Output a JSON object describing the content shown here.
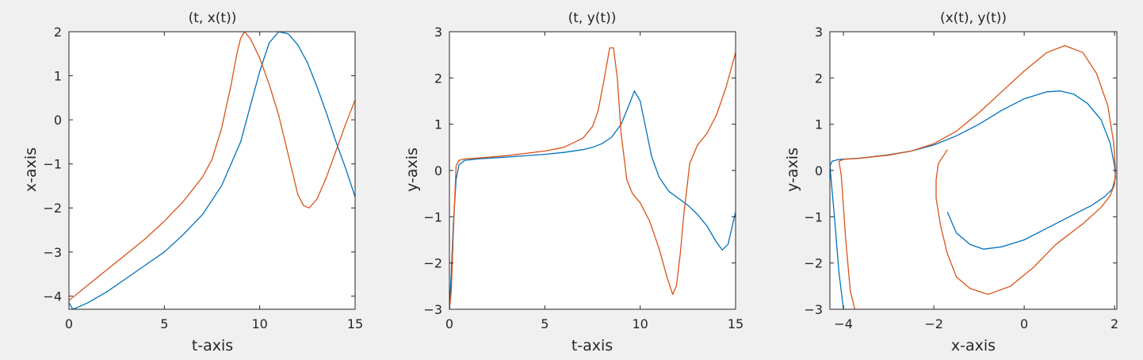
{
  "figure": {
    "background": "#f0f0f0"
  },
  "colors": {
    "series1": "#0072bd",
    "series2": "#d95319",
    "axes": "#262626",
    "plot_bg": "#ffffff"
  },
  "chart_data": [
    {
      "type": "line",
      "title": "(t, x(t))",
      "xlabel": "t-axis",
      "ylabel": "x-axis",
      "xlim": [
        0,
        15
      ],
      "ylim": [
        -4.3,
        2
      ],
      "xticks": [
        0,
        5,
        10,
        15
      ],
      "yticks": [
        -4,
        -3,
        -2,
        -1,
        0,
        1,
        2
      ],
      "series": [
        {
          "x": [
            0,
            0.2,
            0.5,
            1,
            2,
            3,
            4,
            5,
            6,
            7,
            8,
            9,
            9.5,
            10,
            10.5,
            11,
            11.5,
            12,
            12.5,
            13,
            13.5,
            14,
            14.5,
            15
          ],
          "y": [
            -4.15,
            -4.3,
            -4.25,
            -4.15,
            -3.9,
            -3.6,
            -3.3,
            -3.0,
            -2.6,
            -2.15,
            -1.5,
            -0.5,
            0.3,
            1.1,
            1.75,
            2.0,
            1.95,
            1.7,
            1.3,
            0.75,
            0.15,
            -0.5,
            -1.1,
            -1.75
          ]
        },
        {
          "x": [
            0,
            1,
            2,
            3,
            4,
            5,
            6,
            7,
            7.5,
            8,
            8.5,
            8.8,
            9.0,
            9.2,
            9.5,
            10,
            10.5,
            11,
            11.5,
            12,
            12.3,
            12.6,
            13,
            13.5,
            14,
            14.5,
            15
          ],
          "y": [
            -4.1,
            -3.75,
            -3.4,
            -3.05,
            -2.7,
            -2.3,
            -1.85,
            -1.3,
            -0.9,
            -0.2,
            0.8,
            1.5,
            1.85,
            2.0,
            1.85,
            1.4,
            0.8,
            0.1,
            -0.8,
            -1.7,
            -1.95,
            -2.0,
            -1.8,
            -1.3,
            -0.7,
            -0.1,
            0.45
          ]
        }
      ]
    },
    {
      "type": "line",
      "title": "(t, y(t))",
      "xlabel": "t-axis",
      "ylabel": "y-axis",
      "xlim": [
        0,
        15
      ],
      "ylim": [
        -3,
        3
      ],
      "xticks": [
        0,
        5,
        10,
        15
      ],
      "yticks": [
        -3,
        -2,
        -1,
        0,
        1,
        2,
        3
      ],
      "series": [
        {
          "x": [
            0,
            0.1,
            0.2,
            0.35,
            0.5,
            0.8,
            1.5,
            3,
            5,
            6,
            7,
            7.5,
            8,
            8.5,
            9,
            9.4,
            9.7,
            10,
            10.3,
            10.6,
            11,
            11.5,
            12,
            12.5,
            13,
            13.5,
            14,
            14.3,
            14.6,
            15
          ],
          "y": [
            -3,
            -2.2,
            -1.2,
            -0.2,
            0.12,
            0.22,
            0.25,
            0.29,
            0.35,
            0.39,
            0.45,
            0.5,
            0.58,
            0.72,
            1.0,
            1.4,
            1.72,
            1.5,
            0.9,
            0.3,
            -0.15,
            -0.45,
            -0.6,
            -0.75,
            -0.95,
            -1.2,
            -1.55,
            -1.72,
            -1.6,
            -0.9
          ]
        },
        {
          "x": [
            0,
            0.1,
            0.2,
            0.35,
            0.5,
            0.8,
            1.5,
            3,
            5,
            6,
            7,
            7.5,
            7.8,
            8.1,
            8.4,
            8.6,
            8.8,
            9.0,
            9.3,
            9.6,
            10,
            10.5,
            11,
            11.4,
            11.7,
            11.9,
            12.1,
            12.3,
            12.6,
            13,
            13.5,
            14,
            14.5,
            15
          ],
          "y": [
            -3,
            -2.6,
            -1.4,
            0.1,
            0.22,
            0.25,
            0.27,
            0.32,
            0.42,
            0.5,
            0.7,
            0.95,
            1.3,
            1.95,
            2.65,
            2.65,
            2.0,
            0.8,
            -0.2,
            -0.5,
            -0.7,
            -1.1,
            -1.7,
            -2.3,
            -2.68,
            -2.5,
            -1.8,
            -0.9,
            0.15,
            0.55,
            0.8,
            1.2,
            1.8,
            2.55
          ]
        }
      ]
    },
    {
      "type": "line",
      "title": "(x(t), y(t))",
      "xlabel": "x-axis",
      "ylabel": "y-axis",
      "xlim": [
        -4.3,
        2.05
      ],
      "ylim": [
        -3,
        3
      ],
      "xticks": [
        -4,
        -2,
        0,
        2
      ],
      "yticks": [
        -3,
        -2,
        -1,
        0,
        1,
        2,
        3
      ],
      "series": [
        {
          "x": [
            -4.0,
            -4.1,
            -4.2,
            -4.3,
            -4.25,
            -4.1,
            -3.9,
            -3.6,
            -3.0,
            -2.5,
            -2.0,
            -1.5,
            -1.0,
            -0.5,
            0.0,
            0.5,
            0.8,
            1.1,
            1.4,
            1.7,
            1.9,
            2.0,
            2.02,
            1.95,
            1.8,
            1.5,
            1.0,
            0.5,
            0.0,
            -0.5,
            -0.9,
            -1.2,
            -1.5,
            -1.7
          ],
          "y": [
            -3,
            -2.2,
            -1.0,
            0.1,
            0.2,
            0.24,
            0.25,
            0.27,
            0.34,
            0.42,
            0.55,
            0.75,
            1.0,
            1.3,
            1.55,
            1.7,
            1.72,
            1.65,
            1.45,
            1.1,
            0.6,
            0.1,
            -0.15,
            -0.4,
            -0.55,
            -0.75,
            -1.0,
            -1.25,
            -1.5,
            -1.65,
            -1.7,
            -1.6,
            -1.35,
            -0.9
          ]
        },
        {
          "x": [
            -3.75,
            -3.85,
            -3.95,
            -4.05,
            -4.1,
            -4.0,
            -3.7,
            -3.0,
            -2.5,
            -2.0,
            -1.5,
            -1.0,
            -0.5,
            0.0,
            0.5,
            0.9,
            1.3,
            1.6,
            1.85,
            1.98,
            2.02,
            2.0,
            1.9,
            1.7,
            1.3,
            0.7,
            0.2,
            -0.3,
            -0.8,
            -1.2,
            -1.5,
            -1.7,
            -1.85,
            -1.95,
            -1.95,
            -1.9,
            -1.7
          ],
          "y": [
            -3,
            -2.6,
            -1.5,
            -0.1,
            0.2,
            0.24,
            0.26,
            0.33,
            0.42,
            0.58,
            0.85,
            1.25,
            1.7,
            2.15,
            2.55,
            2.7,
            2.55,
            2.1,
            1.4,
            0.6,
            0.0,
            -0.3,
            -0.55,
            -0.8,
            -1.15,
            -1.6,
            -2.1,
            -2.5,
            -2.68,
            -2.55,
            -2.3,
            -1.8,
            -1.2,
            -0.6,
            -0.2,
            0.15,
            0.45
          ]
        }
      ]
    }
  ]
}
